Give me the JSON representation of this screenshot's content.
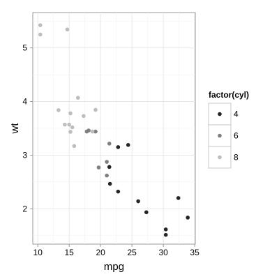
{
  "chart_data": {
    "type": "scatter",
    "title": "",
    "xlabel": "mpg",
    "ylabel": "wt",
    "xlim": [
      9.2,
      35.1
    ],
    "ylim": [
      1.34,
      5.66
    ],
    "x_ticks": [
      10,
      15,
      20,
      25,
      30,
      35
    ],
    "y_ticks": [
      2,
      3,
      4,
      5
    ],
    "grid": true,
    "legend": {
      "title": "factor(cyl)",
      "placement": "right",
      "entries": [
        {
          "label": "4",
          "color": "#252525"
        },
        {
          "label": "6",
          "color": "#808080"
        },
        {
          "label": "8",
          "color": "#bdbdbd"
        }
      ]
    },
    "series": [
      {
        "name": "4",
        "color": "#252525",
        "points": [
          [
            22.8,
            3.15
          ],
          [
            24.4,
            3.19
          ],
          [
            22.8,
            2.32
          ],
          [
            32.4,
            2.2
          ],
          [
            30.4,
            1.615
          ],
          [
            33.9,
            1.835
          ],
          [
            21.5,
            2.465
          ],
          [
            27.3,
            1.935
          ],
          [
            26.0,
            2.14
          ],
          [
            30.4,
            1.513
          ],
          [
            21.4,
            2.78
          ]
        ]
      },
      {
        "name": "6",
        "color": "#808080",
        "points": [
          [
            21.0,
            2.62
          ],
          [
            21.0,
            2.875
          ],
          [
            21.4,
            3.215
          ],
          [
            18.1,
            3.46
          ],
          [
            19.2,
            3.44
          ],
          [
            17.8,
            3.44
          ],
          [
            19.7,
            2.77
          ]
        ]
      },
      {
        "name": "8",
        "color": "#bdbdbd",
        "points": [
          [
            18.7,
            3.44
          ],
          [
            14.3,
            3.57
          ],
          [
            16.4,
            4.07
          ],
          [
            17.3,
            3.73
          ],
          [
            15.2,
            3.78
          ],
          [
            10.4,
            5.25
          ],
          [
            10.4,
            5.424
          ],
          [
            14.7,
            5.345
          ],
          [
            15.5,
            3.52
          ],
          [
            15.2,
            3.435
          ],
          [
            13.3,
            3.84
          ],
          [
            19.2,
            3.845
          ],
          [
            15.8,
            3.17
          ],
          [
            15.0,
            3.57
          ]
        ]
      }
    ]
  }
}
